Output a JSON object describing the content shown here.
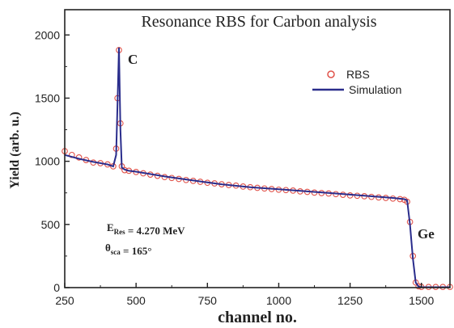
{
  "chart_data": {
    "type": "scatter",
    "title": "Resonance RBS for Carbon analysis",
    "xlabel": "channel no.",
    "ylabel": "Yield (arb. u.)",
    "xlim": [
      250,
      1600
    ],
    "ylim": [
      0,
      2200
    ],
    "xticks": [
      250,
      500,
      750,
      1000,
      1250,
      1500
    ],
    "yticks": [
      0,
      500,
      1000,
      1500,
      2000
    ],
    "grid": false,
    "legend_position": "top-right",
    "series": [
      {
        "name": "RBS",
        "style": "open-circles",
        "color": "#e0524a",
        "x": [
          250,
          275,
          300,
          325,
          350,
          375,
          400,
          420,
          430,
          435,
          440,
          445,
          450,
          460,
          475,
          500,
          525,
          550,
          575,
          600,
          625,
          650,
          675,
          700,
          725,
          750,
          775,
          800,
          825,
          850,
          875,
          900,
          925,
          950,
          975,
          1000,
          1025,
          1050,
          1075,
          1100,
          1125,
          1150,
          1175,
          1200,
          1225,
          1250,
          1275,
          1300,
          1325,
          1350,
          1375,
          1400,
          1425,
          1440,
          1450,
          1460,
          1470,
          1480,
          1490,
          1500,
          1525,
          1550,
          1575,
          1600
        ],
        "y": [
          1080,
          1050,
          1030,
          1010,
          990,
          985,
          975,
          960,
          1100,
          1500,
          1880,
          1300,
          960,
          930,
          925,
          915,
          905,
          895,
          885,
          875,
          868,
          860,
          852,
          845,
          838,
          830,
          825,
          818,
          812,
          808,
          800,
          795,
          790,
          785,
          780,
          775,
          772,
          768,
          762,
          758,
          752,
          748,
          745,
          740,
          735,
          730,
          727,
          723,
          718,
          714,
          710,
          705,
          700,
          695,
          680,
          520,
          250,
          40,
          10,
          5,
          5,
          5,
          5,
          5
        ]
      },
      {
        "name": "Simulation",
        "style": "line",
        "color": "#2a2d8c",
        "x": [
          250,
          300,
          350,
          400,
          420,
          430,
          435,
          440,
          445,
          450,
          460,
          475,
          500,
          600,
          700,
          800,
          900,
          1000,
          1100,
          1200,
          1300,
          1400,
          1440,
          1450,
          1460,
          1470,
          1480,
          1490,
          1500,
          1600
        ],
        "y": [
          1050,
          1020,
          995,
          975,
          960,
          1050,
          1450,
          1900,
          1250,
          950,
          935,
          925,
          918,
          880,
          848,
          818,
          795,
          778,
          762,
          745,
          728,
          710,
          700,
          690,
          500,
          230,
          40,
          8,
          3,
          3
        ]
      }
    ],
    "annotations": {
      "carbon_peak": "C",
      "germanium_edge": "Ge",
      "energy_line": "E<sub>Res</sub> = 4.270 MeV",
      "angle_line": "θ<sub>sca</sub> = 165°"
    }
  }
}
